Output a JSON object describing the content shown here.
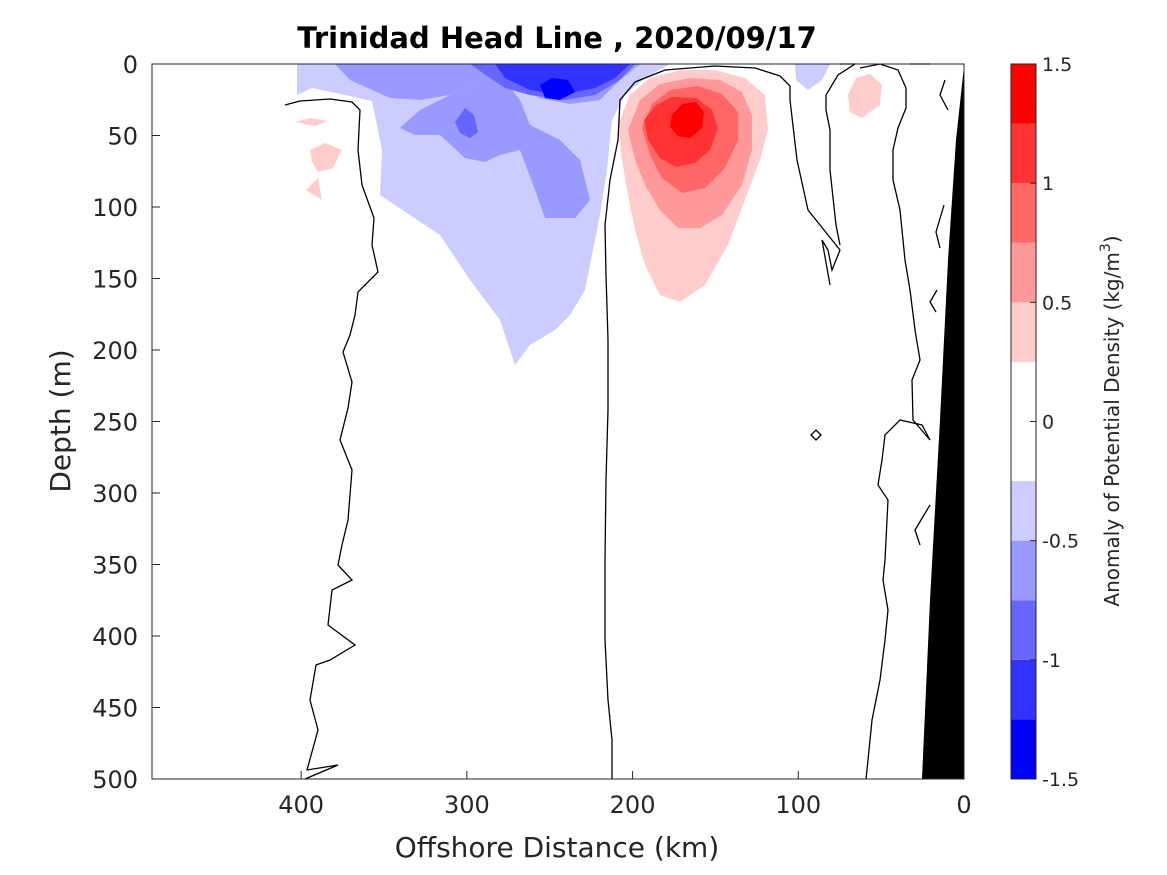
{
  "chart_data": {
    "type": "contour",
    "title": "Trinidad Head Line , 2020/09/17",
    "xlabel": "Offshore Distance (km)",
    "ylabel": "Depth (m)",
    "xlim": [
      490,
      0
    ],
    "ylim": [
      0,
      500
    ],
    "xticks": [
      "400",
      "300",
      "200",
      "100",
      "0"
    ],
    "yticks": [
      "0",
      "50",
      "100",
      "150",
      "200",
      "250",
      "300",
      "350",
      "400",
      "450",
      "500"
    ],
    "colorbar": {
      "label_prefix": "Anomaly of Potential Density (kg/m",
      "label_sup": "3",
      "label_suffix": ")",
      "ticks": [
        "1.5",
        "1",
        "0.5",
        "0",
        "-0.5",
        "-1",
        "-1.5"
      ],
      "levels": [
        -1.5,
        -1.25,
        -1.0,
        -0.75,
        -0.5,
        -0.25,
        0.25,
        0.5,
        0.75,
        1.0,
        1.25,
        1.5
      ],
      "colors": [
        "#0000ff",
        "#3333ff",
        "#6666ff",
        "#9999ff",
        "#ccccff",
        "#ffffff",
        "#ffcccc",
        "#ff9999",
        "#ff6666",
        "#ff3333",
        "#ff0000"
      ]
    },
    "features": {
      "positive_core": {
        "distance_km": 170,
        "depth_m": 40,
        "max_anomaly": 1.25
      },
      "negative_core": {
        "distance_km": 245,
        "depth_m": 20,
        "min_anomaly": -1.25
      },
      "bathymetry_color": "#000000"
    }
  }
}
